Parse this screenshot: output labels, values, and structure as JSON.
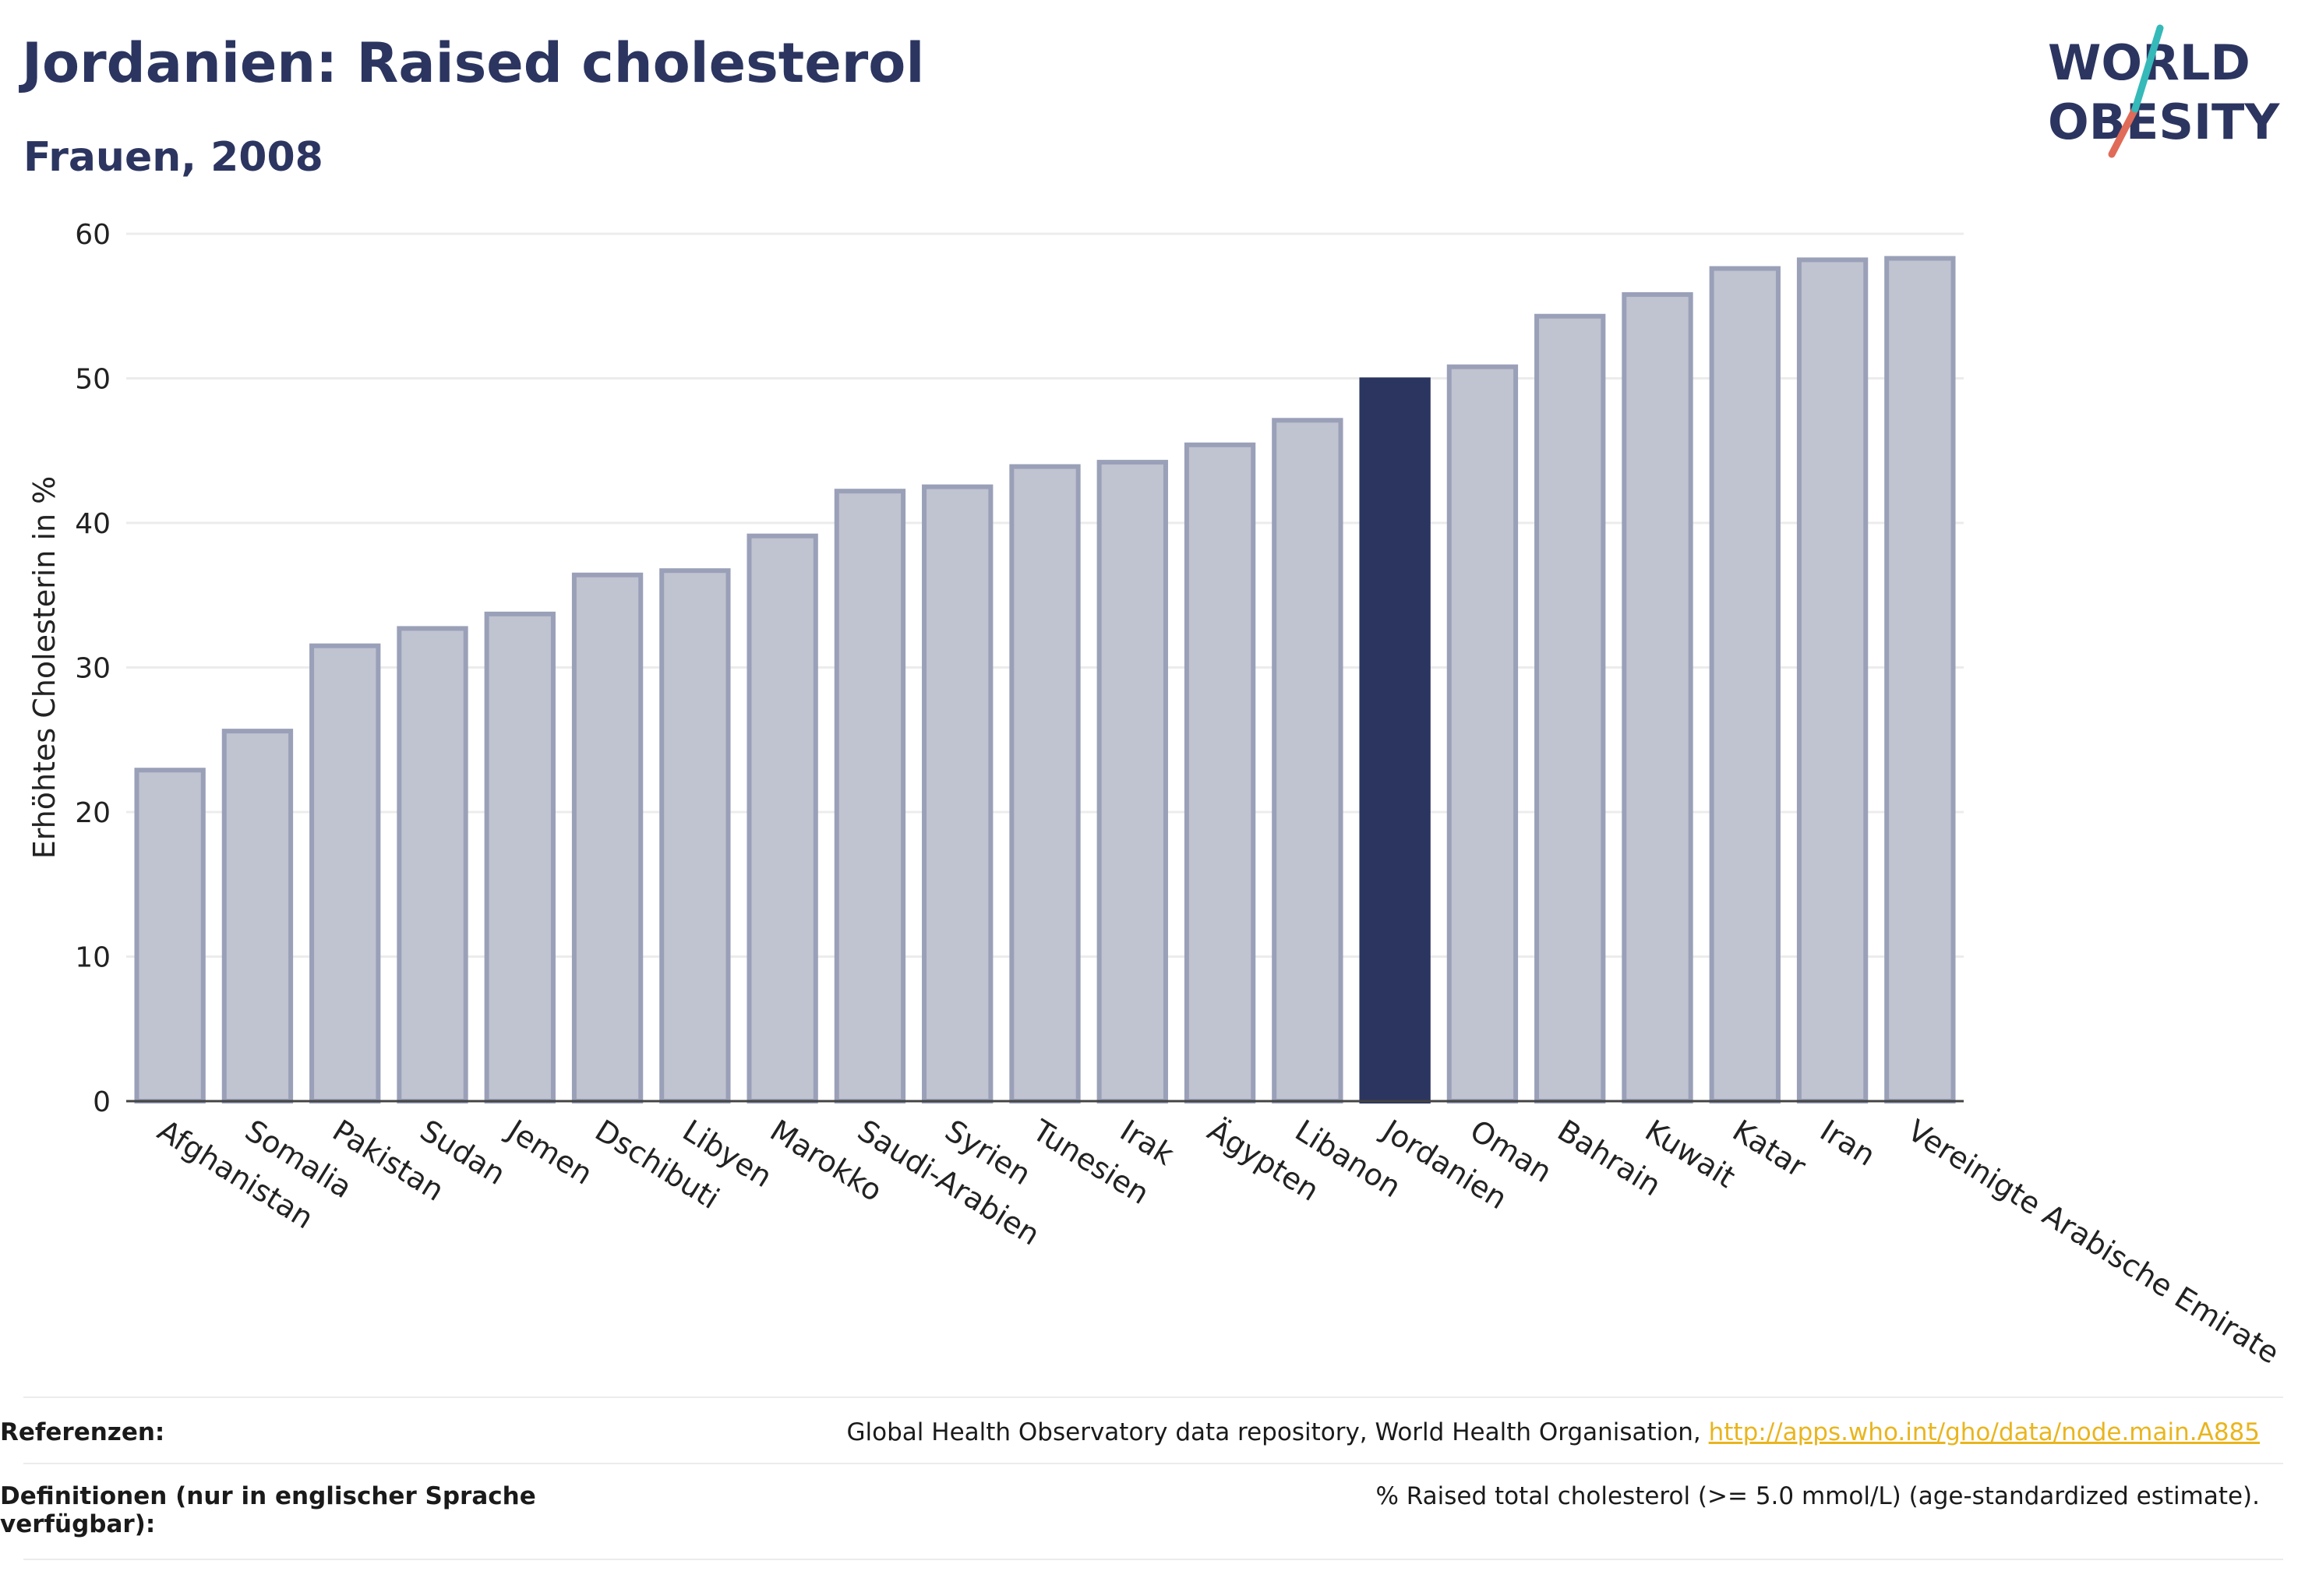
{
  "header": {
    "title": "Jordanien: Raised cholesterol",
    "subtitle": "Frauen, 2008"
  },
  "logo": {
    "line1": "WORLD",
    "line2": "OBESITY"
  },
  "colors": {
    "title": "#2b3560",
    "bar": "#c0c3d0",
    "bar_stroke": "#9aa0b8",
    "highlight": "#2b3560",
    "logo_teal": "#35b9b9",
    "logo_red": "#e06b58",
    "link": "#e9b51e"
  },
  "chart_data": {
    "type": "bar",
    "title": "Jordanien: Raised cholesterol",
    "subtitle": "Frauen, 2008",
    "xlabel": "",
    "ylabel": "Erhöhtes Cholesterin in %",
    "ylim": [
      0,
      60
    ],
    "yticks": [
      0,
      10,
      20,
      30,
      40,
      50,
      60
    ],
    "grid": true,
    "highlight": "Jordanien",
    "categories": [
      "Afghanistan",
      "Somalia",
      "Pakistan",
      "Sudan",
      "Jemen",
      "Dschibuti",
      "Libyen",
      "Marokko",
      "Saudi-Arabien",
      "Syrien",
      "Tunesien",
      "Irak",
      "Ägypten",
      "Libanon",
      "Jordanien",
      "Oman",
      "Bahrain",
      "Kuwait",
      "Katar",
      "Iran",
      "Vereinigte Arabische Emirate"
    ],
    "values": [
      22.9,
      25.6,
      31.5,
      32.7,
      33.7,
      36.4,
      36.7,
      39.1,
      42.2,
      42.5,
      43.9,
      44.2,
      45.4,
      47.1,
      49.9,
      50.8,
      54.3,
      55.8,
      57.6,
      58.2,
      58.3
    ]
  },
  "footer": {
    "references_label": "Referenzen:",
    "references_text": "Global Health Observatory data repository, World Health Organisation, ",
    "references_link": "http://apps.who.int/gho/data/node.main.A885",
    "definitions_label": "Definitionen (nur in englischer Sprache verfügbar):",
    "definitions_text": "% Raised total cholesterol (>= 5.0 mmol/L) (age-standardized estimate)."
  }
}
